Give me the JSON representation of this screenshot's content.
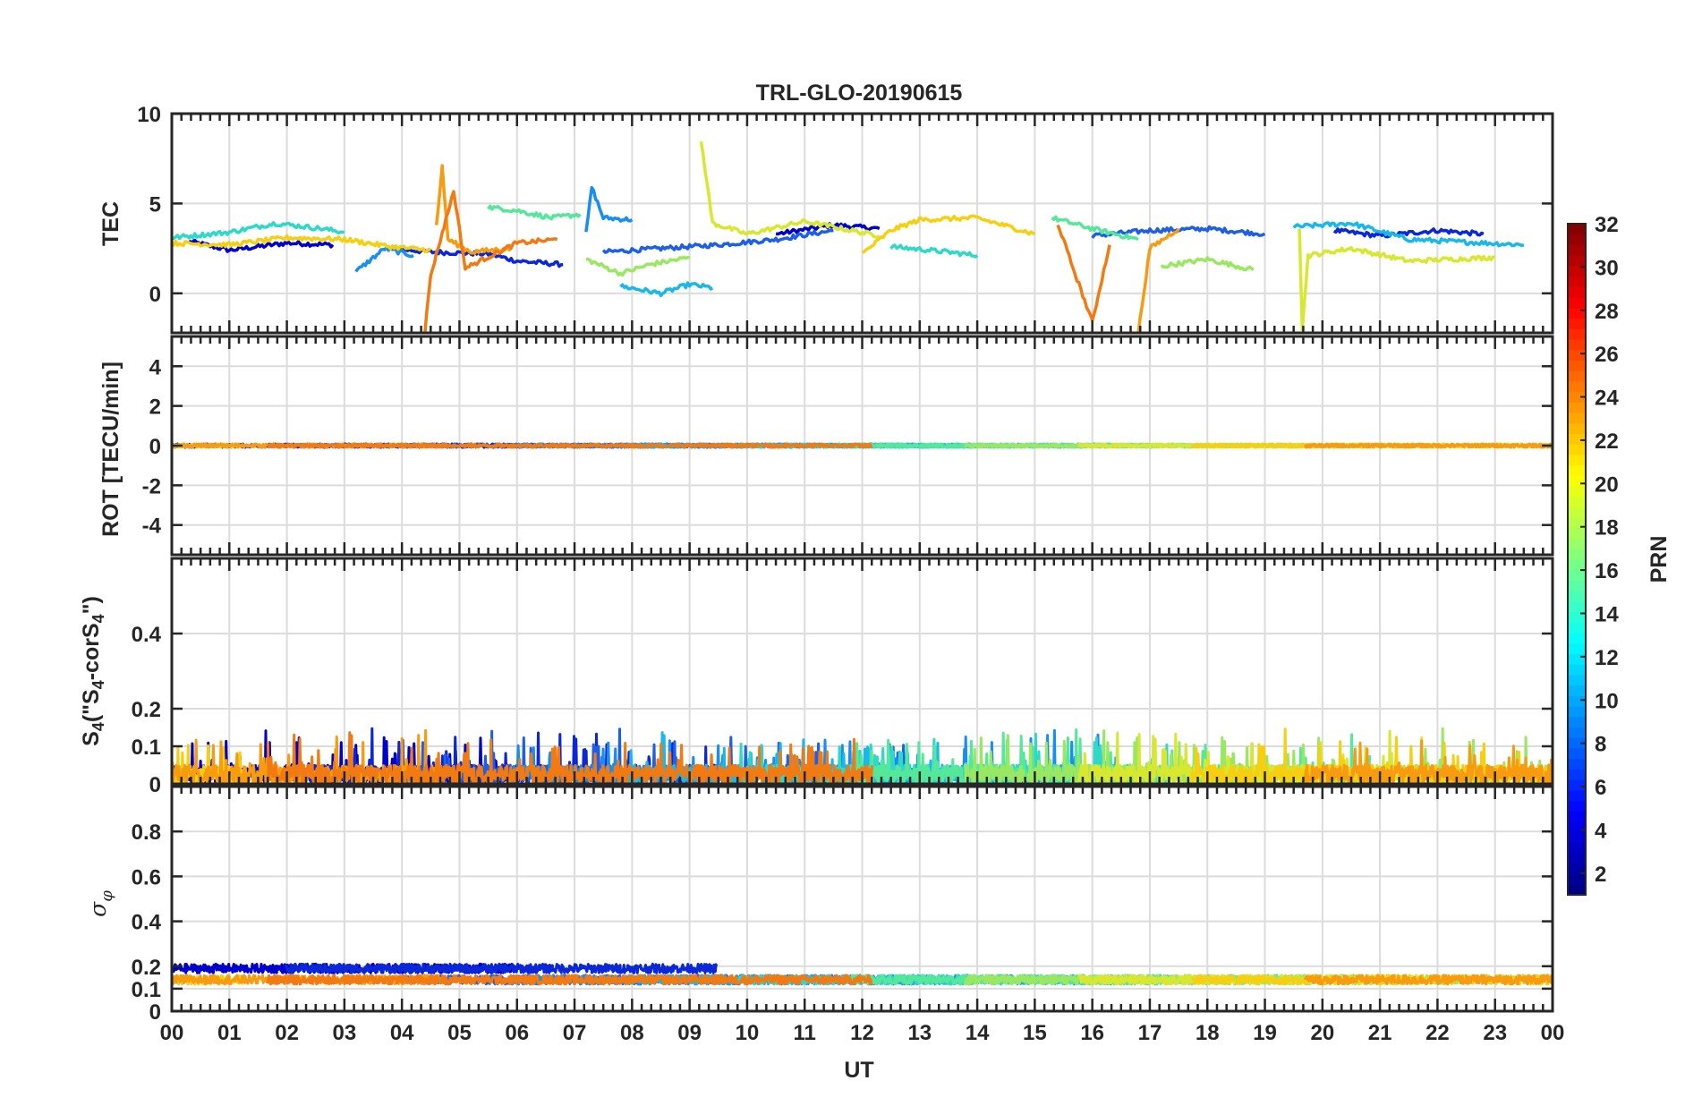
{
  "title": "TRL-GLO-20190615",
  "chart_data": {
    "type": "line",
    "title": "TRL-GLO-20190615",
    "xlabel": "UT",
    "x_ticks": [
      "00",
      "01",
      "02",
      "03",
      "04",
      "05",
      "06",
      "07",
      "08",
      "09",
      "10",
      "11",
      "12",
      "13",
      "14",
      "15",
      "16",
      "17",
      "18",
      "19",
      "20",
      "21",
      "22",
      "23",
      "00"
    ],
    "xlim": [
      0,
      24
    ],
    "grid": true,
    "panels": [
      {
        "ylabel": "TEC",
        "ylim": [
          -2.2,
          10
        ],
        "y_ticks": [
          0,
          5,
          10
        ]
      },
      {
        "ylabel": "ROT [TECU/min]",
        "ylim": [
          -5.5,
          5.5
        ],
        "y_ticks": [
          -4,
          -2,
          0,
          2,
          4
        ]
      },
      {
        "ylabel_main": "S",
        "ylabel_sub": "4",
        "ylabel_text": "(\"S",
        "ylabel_sub2": "4",
        "ylabel_text2": "-corS",
        "ylabel_sub3": "4",
        "ylabel_text3": "\")",
        "ylim": [
          0,
          0.6
        ],
        "y_ticks": [
          0,
          0.1,
          0.2,
          0.4
        ]
      },
      {
        "ylabel_main": "σ",
        "ylabel_sub": "φ",
        "ylim": [
          0,
          1.0
        ],
        "y_ticks": [
          0,
          0.1,
          0.2,
          0.4,
          0.6,
          0.8
        ]
      }
    ],
    "series": [
      {
        "prn": 3,
        "color": "#0000cd",
        "tec": [
          [
            0.3,
            2.9
          ],
          [
            1,
            2.4
          ],
          [
            1.5,
            2.6
          ],
          [
            2,
            2.8
          ],
          [
            2.8,
            2.7
          ]
        ],
        "seg2": [
          [
            10.5,
            3.3
          ],
          [
            11.5,
            3.8
          ],
          [
            12.3,
            3.6
          ]
        ]
      },
      {
        "prn": 4,
        "color": "#0a28d8",
        "tec": [
          [
            3.8,
            2.5
          ],
          [
            4.5,
            2.3
          ],
          [
            5.5,
            2.2
          ],
          [
            6,
            1.8
          ],
          [
            6.8,
            1.6
          ]
        ],
        "seg2": [
          [
            20.2,
            3.5
          ],
          [
            21,
            3.2
          ],
          [
            22,
            3.5
          ],
          [
            22.8,
            3.3
          ]
        ]
      },
      {
        "prn": 7,
        "color": "#1e5fe8",
        "tec": [
          [
            7.5,
            2.3
          ],
          [
            8.5,
            2.5
          ],
          [
            9.5,
            2.7
          ],
          [
            10.5,
            3.0
          ],
          [
            11.5,
            3.5
          ]
        ],
        "seg2": [
          [
            16,
            3.2
          ],
          [
            17,
            3.5
          ],
          [
            18,
            3.6
          ],
          [
            19,
            3.3
          ]
        ]
      },
      {
        "prn": 9,
        "color": "#178ef0",
        "tec": [
          [
            7.2,
            3.3
          ],
          [
            7.3,
            5.9
          ],
          [
            7.5,
            4.2
          ],
          [
            8.0,
            4.1
          ]
        ],
        "seg2": [
          [
            3.2,
            1.2
          ],
          [
            3.7,
            2.5
          ],
          [
            4.2,
            2.1
          ]
        ]
      },
      {
        "prn": 11,
        "color": "#1ab8e8",
        "tec": [
          [
            7.8,
            0.4
          ],
          [
            8.5,
            0.0
          ],
          [
            9.0,
            0.5
          ],
          [
            9.4,
            0.3
          ]
        ],
        "seg2": [
          [
            19.5,
            3.7
          ],
          [
            20.5,
            3.9
          ],
          [
            21.5,
            3.0
          ],
          [
            23.5,
            2.7
          ]
        ]
      },
      {
        "prn": 13,
        "color": "#30d8c8",
        "tec": [
          [
            0.0,
            3.1
          ],
          [
            1.0,
            3.4
          ],
          [
            1.8,
            3.9
          ],
          [
            2.6,
            3.6
          ],
          [
            3.0,
            3.4
          ]
        ],
        "seg2": [
          [
            12.5,
            2.6
          ],
          [
            13.5,
            2.3
          ],
          [
            14.0,
            2.1
          ]
        ]
      },
      {
        "prn": 15,
        "color": "#56e89a",
        "tec": [
          [
            5.5,
            4.8
          ],
          [
            6.0,
            4.6
          ],
          [
            6.6,
            4.2
          ],
          [
            7.1,
            4.4
          ]
        ],
        "seg2": [
          [
            15.3,
            4.2
          ],
          [
            16,
            3.6
          ],
          [
            16.8,
            3.0
          ]
        ]
      },
      {
        "prn": 17,
        "color": "#9ae862",
        "tec": [
          [
            7.2,
            1.9
          ],
          [
            7.8,
            1.1
          ],
          [
            8.3,
            1.6
          ],
          [
            9.0,
            2.0
          ]
        ],
        "seg2": [
          [
            17.2,
            1.5
          ],
          [
            18,
            1.9
          ],
          [
            18.8,
            1.3
          ]
        ]
      },
      {
        "prn": 19,
        "color": "#d8e830",
        "tec": [
          [
            9.2,
            8.5
          ],
          [
            9.4,
            3.9
          ],
          [
            10.0,
            3.3
          ],
          [
            11,
            4.0
          ],
          [
            12.3,
            3.2
          ]
        ],
        "seg2": [
          [
            19.6,
            3.7
          ],
          [
            19.65,
            -2.0
          ],
          [
            19.75,
            2.1
          ],
          [
            20.5,
            2.5
          ],
          [
            21.5,
            1.8
          ],
          [
            23,
            2.0
          ]
        ]
      },
      {
        "prn": 21,
        "color": "#f6d010",
        "tec": [
          [
            0.0,
            2.8
          ],
          [
            1,
            2.7
          ],
          [
            2,
            3.1
          ],
          [
            3,
            3.0
          ],
          [
            3.8,
            2.6
          ],
          [
            4.5,
            2.4
          ]
        ],
        "seg2": [
          [
            12,
            2.2
          ],
          [
            12.5,
            3.5
          ],
          [
            13,
            4.1
          ],
          [
            14,
            4.2
          ],
          [
            15,
            3.3
          ]
        ]
      },
      {
        "prn": 23,
        "color": "#f79b10",
        "tec": [
          [
            4.6,
            3.8
          ],
          [
            4.7,
            7.0
          ],
          [
            4.8,
            3.0
          ],
          [
            5.2,
            2.3
          ],
          [
            5.9,
            2.5
          ]
        ],
        "seg2": [
          [
            16.8,
            -2.2
          ],
          [
            17.0,
            2.5
          ],
          [
            17.5,
            3.6
          ]
        ]
      },
      {
        "prn": 24,
        "color": "#f27a12",
        "tec": [
          [
            4.4,
            -2.1
          ],
          [
            4.5,
            1.0
          ],
          [
            4.9,
            5.7
          ],
          [
            5.1,
            1.4
          ],
          [
            6.0,
            2.8
          ],
          [
            6.7,
            3.0
          ]
        ],
        "seg2": [
          [
            15.4,
            3.9
          ],
          [
            15.6,
            2.0
          ],
          [
            16.0,
            -1.6
          ],
          [
            16.3,
            2.7
          ]
        ]
      }
    ],
    "colorbar": {
      "label": "PRN",
      "ticks": [
        2,
        4,
        6,
        8,
        10,
        12,
        14,
        16,
        18,
        20,
        22,
        24,
        26,
        28,
        30,
        32
      ],
      "range": [
        1,
        32
      ],
      "colormap": "jet"
    }
  }
}
